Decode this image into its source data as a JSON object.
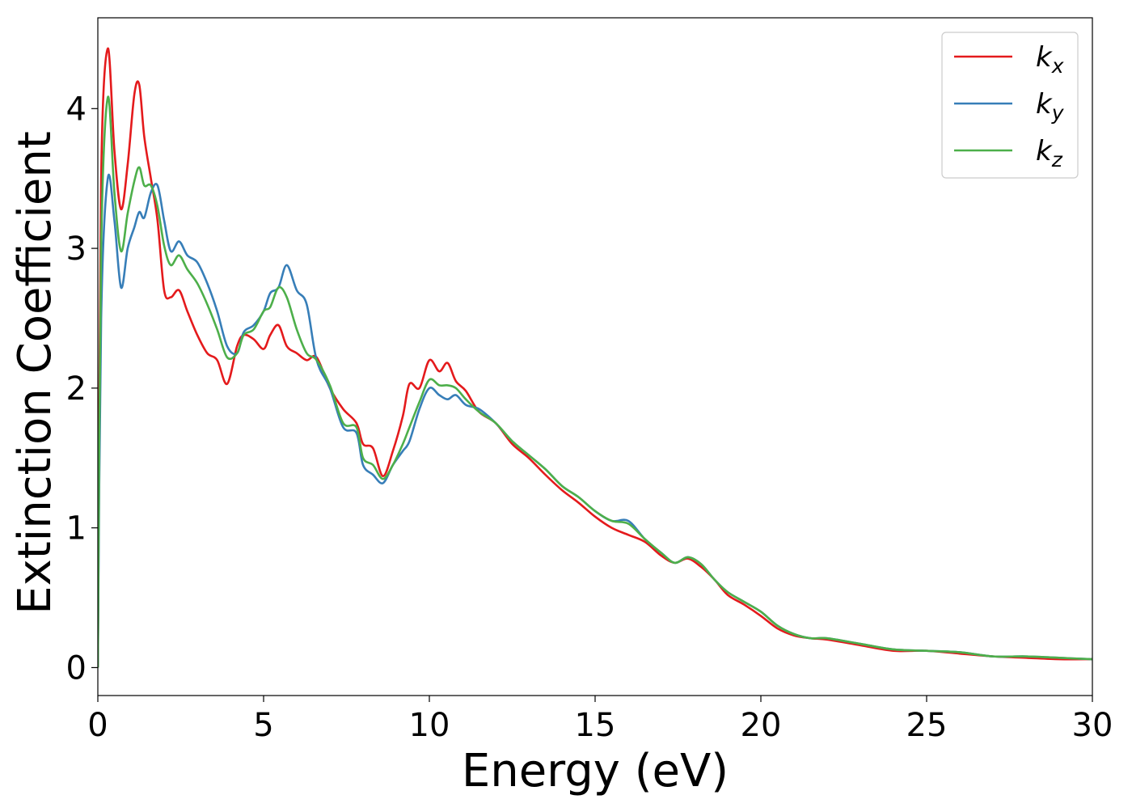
{
  "chart_data": {
    "type": "line",
    "title": "",
    "xlabel": "Energy (eV)",
    "ylabel": "Extinction Coefficient",
    "xlim": [
      0,
      30
    ],
    "ylim": [
      -0.2,
      4.65
    ],
    "xticks": [
      0,
      5,
      10,
      15,
      20,
      25,
      30
    ],
    "yticks": [
      0,
      1,
      2,
      3,
      4
    ],
    "grid": false,
    "legend_position": "top-right",
    "series": [
      {
        "name": "k",
        "subscript": "x",
        "color": "#e41a1c",
        "x": [
          0,
          0.1,
          0.3,
          0.5,
          0.7,
          0.9,
          1.1,
          1.25,
          1.4,
          1.6,
          1.8,
          2.0,
          2.2,
          2.45,
          2.7,
          3.0,
          3.3,
          3.6,
          3.9,
          4.2,
          4.4,
          4.7,
          5.0,
          5.2,
          5.45,
          5.7,
          6.0,
          6.3,
          6.6,
          7.0,
          7.4,
          7.8,
          8.0,
          8.3,
          8.6,
          8.9,
          9.2,
          9.4,
          9.7,
          10.0,
          10.3,
          10.55,
          10.8,
          11.1,
          11.5,
          12.0,
          12.5,
          13.0,
          13.5,
          14.0,
          14.5,
          15.0,
          15.5,
          16.0,
          16.5,
          17.0,
          17.4,
          17.8,
          18.2,
          18.6,
          19.0,
          19.5,
          20.0,
          20.5,
          21.0,
          21.5,
          22.0,
          23.0,
          24.0,
          25.0,
          26.0,
          27.0,
          28.0,
          29.0,
          30.0
        ],
        "values": [
          0.0,
          3.5,
          4.43,
          3.7,
          3.28,
          3.6,
          4.1,
          4.17,
          3.8,
          3.5,
          3.2,
          2.7,
          2.65,
          2.7,
          2.55,
          2.38,
          2.25,
          2.2,
          2.03,
          2.3,
          2.38,
          2.35,
          2.28,
          2.38,
          2.45,
          2.3,
          2.25,
          2.2,
          2.22,
          2.0,
          1.85,
          1.75,
          1.6,
          1.57,
          1.37,
          1.55,
          1.8,
          2.03,
          2.0,
          2.2,
          2.12,
          2.18,
          2.05,
          1.98,
          1.83,
          1.75,
          1.6,
          1.5,
          1.38,
          1.27,
          1.18,
          1.08,
          1.0,
          0.95,
          0.9,
          0.8,
          0.75,
          0.78,
          0.72,
          0.63,
          0.52,
          0.45,
          0.37,
          0.28,
          0.23,
          0.21,
          0.2,
          0.16,
          0.12,
          0.12,
          0.1,
          0.08,
          0.07,
          0.06,
          0.06
        ]
      },
      {
        "name": "k",
        "subscript": "y",
        "color": "#377eb8",
        "x": [
          0,
          0.1,
          0.3,
          0.5,
          0.7,
          0.9,
          1.1,
          1.25,
          1.4,
          1.6,
          1.8,
          2.0,
          2.2,
          2.45,
          2.7,
          3.0,
          3.3,
          3.6,
          3.9,
          4.2,
          4.4,
          4.7,
          5.0,
          5.2,
          5.45,
          5.7,
          6.0,
          6.3,
          6.6,
          7.0,
          7.4,
          7.8,
          8.0,
          8.3,
          8.6,
          8.9,
          9.2,
          9.4,
          9.7,
          10.0,
          10.3,
          10.55,
          10.8,
          11.1,
          11.5,
          12.0,
          12.5,
          13.0,
          13.5,
          14.0,
          14.5,
          15.0,
          15.5,
          16.0,
          16.5,
          17.0,
          17.4,
          17.8,
          18.2,
          18.6,
          19.0,
          19.5,
          20.0,
          20.5,
          21.0,
          21.5,
          22.0,
          23.0,
          24.0,
          25.0,
          26.0,
          27.0,
          28.0,
          29.0,
          30.0
        ],
        "values": [
          0.0,
          2.5,
          3.5,
          3.2,
          2.72,
          3.0,
          3.15,
          3.26,
          3.22,
          3.4,
          3.45,
          3.2,
          2.98,
          3.05,
          2.95,
          2.9,
          2.75,
          2.55,
          2.3,
          2.25,
          2.4,
          2.45,
          2.55,
          2.68,
          2.72,
          2.88,
          2.7,
          2.6,
          2.2,
          2.0,
          1.72,
          1.68,
          1.45,
          1.38,
          1.32,
          1.45,
          1.55,
          1.62,
          1.85,
          2.0,
          1.95,
          1.92,
          1.95,
          1.88,
          1.85,
          1.75,
          1.62,
          1.52,
          1.42,
          1.3,
          1.22,
          1.12,
          1.05,
          1.05,
          0.92,
          0.82,
          0.75,
          0.79,
          0.74,
          0.63,
          0.54,
          0.47,
          0.4,
          0.3,
          0.24,
          0.21,
          0.21,
          0.17,
          0.13,
          0.12,
          0.11,
          0.08,
          0.08,
          0.07,
          0.06
        ]
      },
      {
        "name": "k",
        "subscript": "z",
        "color": "#4daf4a",
        "x": [
          0,
          0.1,
          0.3,
          0.5,
          0.7,
          0.9,
          1.1,
          1.25,
          1.4,
          1.6,
          1.8,
          2.0,
          2.2,
          2.45,
          2.7,
          3.0,
          3.3,
          3.6,
          3.9,
          4.2,
          4.4,
          4.7,
          5.0,
          5.2,
          5.45,
          5.7,
          6.0,
          6.3,
          6.6,
          7.0,
          7.4,
          7.8,
          8.0,
          8.3,
          8.6,
          8.9,
          9.2,
          9.4,
          9.7,
          10.0,
          10.3,
          10.55,
          10.8,
          11.1,
          11.5,
          12.0,
          12.5,
          13.0,
          13.5,
          14.0,
          14.5,
          15.0,
          15.5,
          16.0,
          16.5,
          17.0,
          17.4,
          17.8,
          18.2,
          18.6,
          19.0,
          19.5,
          20.0,
          20.5,
          21.0,
          21.5,
          22.0,
          23.0,
          24.0,
          25.0,
          26.0,
          27.0,
          28.0,
          29.0,
          30.0
        ],
        "values": [
          0.0,
          3.0,
          4.08,
          3.4,
          2.98,
          3.25,
          3.48,
          3.58,
          3.45,
          3.45,
          3.3,
          3.02,
          2.88,
          2.95,
          2.85,
          2.75,
          2.6,
          2.42,
          2.22,
          2.25,
          2.38,
          2.42,
          2.55,
          2.58,
          2.72,
          2.65,
          2.42,
          2.25,
          2.2,
          2.02,
          1.75,
          1.72,
          1.5,
          1.45,
          1.35,
          1.45,
          1.6,
          1.72,
          1.9,
          2.06,
          2.02,
          2.02,
          2.0,
          1.92,
          1.83,
          1.75,
          1.62,
          1.52,
          1.42,
          1.3,
          1.22,
          1.12,
          1.05,
          1.03,
          0.92,
          0.82,
          0.75,
          0.79,
          0.74,
          0.63,
          0.54,
          0.47,
          0.4,
          0.3,
          0.24,
          0.21,
          0.21,
          0.17,
          0.13,
          0.12,
          0.11,
          0.08,
          0.08,
          0.07,
          0.06
        ]
      }
    ]
  }
}
